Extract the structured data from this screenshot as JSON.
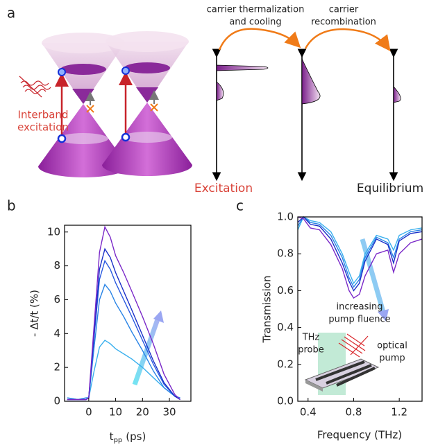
{
  "panel_labels": [
    "a",
    "b",
    "c"
  ],
  "panel_a": {
    "interband_label": [
      "Interband",
      "excitation"
    ],
    "thermalization_label": [
      "carrier  thermalization",
      "and cooling"
    ],
    "recombination_label": [
      "carrier",
      "recombination"
    ],
    "excitation_label": "Excitation",
    "equilibrium_label": "Equilibrium"
  },
  "chart_data": [
    {
      "type": "line",
      "xlabel": "t",
      "xlabel_subscript": "pp",
      "xlabel_unit": "(ps)",
      "ylabel": "- Δt/t (%)",
      "xlim": [
        -9,
        38
      ],
      "xticks": [
        0,
        10,
        20,
        30
      ],
      "ylim": [
        0,
        10.4
      ],
      "yticks": [
        0,
        2,
        4,
        6,
        8,
        10
      ],
      "x": [
        -8,
        -4,
        -1,
        0,
        2,
        4,
        6,
        8,
        10,
        13,
        16,
        20,
        24,
        28,
        32,
        34
      ],
      "series": [
        {
          "color": "#3ab0ee",
          "values": [
            0.2,
            0.1,
            0.2,
            0.2,
            1.8,
            3.2,
            3.6,
            3.4,
            3.1,
            2.8,
            2.5,
            2.0,
            1.4,
            0.8,
            0.3,
            0.2
          ]
        },
        {
          "color": "#2a84e6",
          "values": [
            0.2,
            0.1,
            0.2,
            0.2,
            3.2,
            6.0,
            6.9,
            6.5,
            5.8,
            5.0,
            4.1,
            3.0,
            1.8,
            0.8,
            0.3,
            0.2
          ]
        },
        {
          "color": "#2a5ae0",
          "values": [
            0.1,
            0.1,
            0.1,
            0.2,
            3.8,
            7.2,
            8.3,
            7.8,
            7.0,
            6.0,
            5.0,
            3.6,
            2.2,
            1.0,
            0.3,
            0.1
          ]
        },
        {
          "color": "#1a2fc8",
          "values": [
            0.1,
            0.1,
            0.1,
            0.2,
            4.0,
            7.8,
            9.0,
            8.5,
            7.6,
            6.5,
            5.4,
            3.9,
            2.4,
            1.1,
            0.3,
            0.1
          ]
        },
        {
          "color": "#7a28c8",
          "values": [
            0.1,
            0.1,
            0.1,
            0.2,
            4.5,
            8.8,
            10.3,
            9.7,
            8.6,
            7.6,
            6.5,
            5.0,
            3.4,
            1.6,
            0.4,
            0.1
          ]
        }
      ]
    },
    {
      "type": "line",
      "xlabel": "Frequency (THz)",
      "ylabel": "Transmission",
      "xlim": [
        0.31,
        1.4
      ],
      "xticks": [
        0.4,
        0.8,
        1.2
      ],
      "ylim": [
        0,
        1.0
      ],
      "yticks": [
        {
          "value": 0,
          "label": "0.0"
        },
        0.2,
        0.4,
        0.6,
        0.8,
        {
          "value": 1,
          "label": "1.0"
        }
      ],
      "annotation": [
        "increasing",
        "pump fluence"
      ],
      "inset_probe": [
        "THz",
        "probe"
      ],
      "inset_pump": [
        "optical",
        "pump"
      ],
      "x": [
        0.31,
        0.36,
        0.42,
        0.5,
        0.6,
        0.7,
        0.76,
        0.8,
        0.85,
        0.9,
        1.0,
        1.1,
        1.15,
        1.2,
        1.3,
        1.4
      ],
      "series": [
        {
          "color": "#3ab0ee",
          "values": [
            0.93,
            1.0,
            0.98,
            0.97,
            0.92,
            0.8,
            0.7,
            0.64,
            0.68,
            0.8,
            0.9,
            0.88,
            0.82,
            0.9,
            0.93,
            0.94
          ]
        },
        {
          "color": "#2a84e6",
          "values": [
            0.95,
            1.0,
            0.97,
            0.96,
            0.9,
            0.78,
            0.67,
            0.62,
            0.66,
            0.78,
            0.89,
            0.86,
            0.78,
            0.88,
            0.92,
            0.93
          ]
        },
        {
          "color": "#1a2fc8",
          "values": [
            0.97,
            1.0,
            0.96,
            0.95,
            0.88,
            0.75,
            0.65,
            0.6,
            0.64,
            0.76,
            0.88,
            0.85,
            0.75,
            0.87,
            0.91,
            0.92
          ]
        },
        {
          "color": "#7a28c8",
          "values": [
            1.0,
            0.99,
            0.94,
            0.93,
            0.85,
            0.72,
            0.6,
            0.56,
            0.58,
            0.68,
            0.8,
            0.82,
            0.7,
            0.8,
            0.86,
            0.88
          ]
        }
      ]
    }
  ]
}
